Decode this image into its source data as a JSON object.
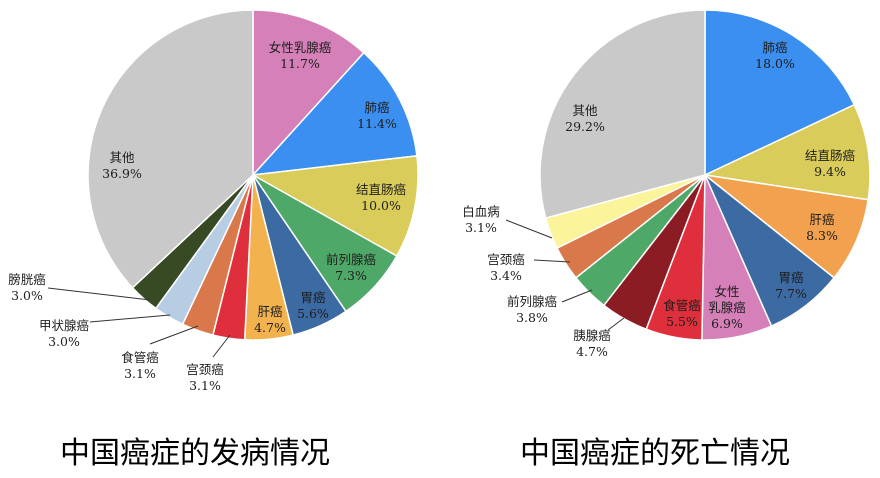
{
  "chart_data": [
    {
      "type": "pie",
      "title": "中国癌症的发病情况",
      "slices": [
        {
          "name": "女性乳腺癌",
          "value": 11.7,
          "label": "11.7%",
          "color": "#d580b8"
        },
        {
          "name": "肺癌",
          "value": 11.4,
          "label": "11.4%",
          "color": "#3a8ff0"
        },
        {
          "name": "结直肠癌",
          "value": 10.0,
          "label": "10.0%",
          "color": "#d9cc5a"
        },
        {
          "name": "前列腺癌",
          "value": 7.3,
          "label": "7.3%",
          "color": "#4ea868"
        },
        {
          "name": "胃癌",
          "value": 5.6,
          "label": "5.6%",
          "color": "#3c6aa3"
        },
        {
          "name": "肝癌",
          "value": 4.7,
          "label": "4.7%",
          "color": "#f2b24e"
        },
        {
          "name": "宫颈癌",
          "value": 3.1,
          "label": "3.1%",
          "color": "#e02f3c"
        },
        {
          "name": "食管癌",
          "value": 3.1,
          "label": "3.1%",
          "color": "#d9784a"
        },
        {
          "name": "甲状腺癌",
          "value": 3.0,
          "label": "3.0%",
          "color": "#b7cde4"
        },
        {
          "name": "膀胱癌",
          "value": 3.0,
          "label": "3.0%",
          "color": "#374a24"
        },
        {
          "name": "其他",
          "value": 36.9,
          "label": "36.9%",
          "color": "#c9c9c9"
        }
      ]
    },
    {
      "type": "pie",
      "title": "中国癌症的死亡情况",
      "slices": [
        {
          "name": "肺癌",
          "value": 18.0,
          "label": "18.0%",
          "color": "#3a8ff0"
        },
        {
          "name": "结直肠癌",
          "value": 9.4,
          "label": "9.4%",
          "color": "#d9cc5a"
        },
        {
          "name": "肝癌",
          "value": 8.3,
          "label": "8.3%",
          "color": "#f2a24e"
        },
        {
          "name": "胃癌",
          "value": 7.7,
          "label": "7.7%",
          "color": "#3c6aa3"
        },
        {
          "name": "女性乳腺癌",
          "value": 6.9,
          "label": "6.9%",
          "color": "#d580b8"
        },
        {
          "name": "食管癌",
          "value": 5.5,
          "label": "5.5%",
          "color": "#e02f3c"
        },
        {
          "name": "胰腺癌",
          "value": 4.7,
          "label": "4.7%",
          "color": "#8b1c24"
        },
        {
          "name": "前列腺癌",
          "value": 3.8,
          "label": "3.8%",
          "color": "#4ea868"
        },
        {
          "name": "宫颈癌",
          "value": 3.4,
          "label": "3.4%",
          "color": "#d9784a"
        },
        {
          "name": "白血病",
          "value": 3.1,
          "label": "3.1%",
          "color": "#fbf49a"
        },
        {
          "name": "其他",
          "value": 29.2,
          "label": "29.2%",
          "color": "#c9c9c9"
        }
      ]
    }
  ],
  "display_names": {
    "left": [
      "女性乳腺癌",
      "肺癌",
      "结直肠癌",
      "前列腺癌",
      "胃癌",
      "肝癌",
      "宫颈癌",
      "食管癌",
      "甲状腺癌",
      "膀胱癌",
      "其他"
    ],
    "right": [
      "肺癌",
      "结直肠癌",
      "肝癌",
      "胃癌",
      "女性\n乳腺癌",
      "食管癌",
      "胰腺癌",
      "前列腺癌",
      "宫颈癌",
      "白血病",
      "其他"
    ]
  }
}
